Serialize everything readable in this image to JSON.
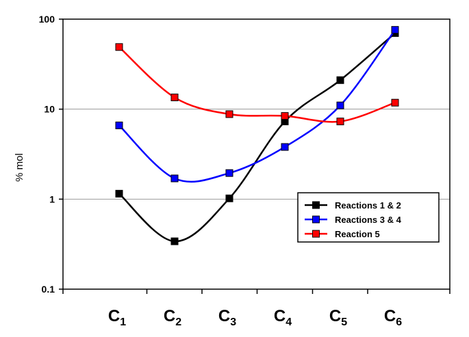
{
  "chart_data": {
    "type": "line",
    "yscale": "log",
    "ylim": [
      0.1,
      100
    ],
    "ylabel": "% mol",
    "ytick_labels": [
      "0.1",
      "1",
      "10",
      "100"
    ],
    "categories": [
      {
        "base": "C",
        "sub": "1"
      },
      {
        "base": "C",
        "sub": "2"
      },
      {
        "base": "C",
        "sub": "3"
      },
      {
        "base": "C",
        "sub": "4"
      },
      {
        "base": "C",
        "sub": "5"
      },
      {
        "base": "C",
        "sub": "6"
      }
    ],
    "series": [
      {
        "name": "Reactions 1 & 2",
        "color": "#000000",
        "values": [
          1.15,
          0.34,
          1.02,
          7.3,
          21.0,
          70.0
        ]
      },
      {
        "name": "Reactions 3 & 4",
        "color": "#0000ff",
        "values": [
          6.6,
          1.7,
          1.95,
          3.8,
          11.0,
          76.0
        ]
      },
      {
        "name": "Reaction 5",
        "color": "#ff0000",
        "values": [
          49.0,
          13.5,
          8.8,
          8.4,
          7.3,
          11.8
        ]
      }
    ],
    "grid": "horizontal",
    "legend_position": "lower-right"
  }
}
